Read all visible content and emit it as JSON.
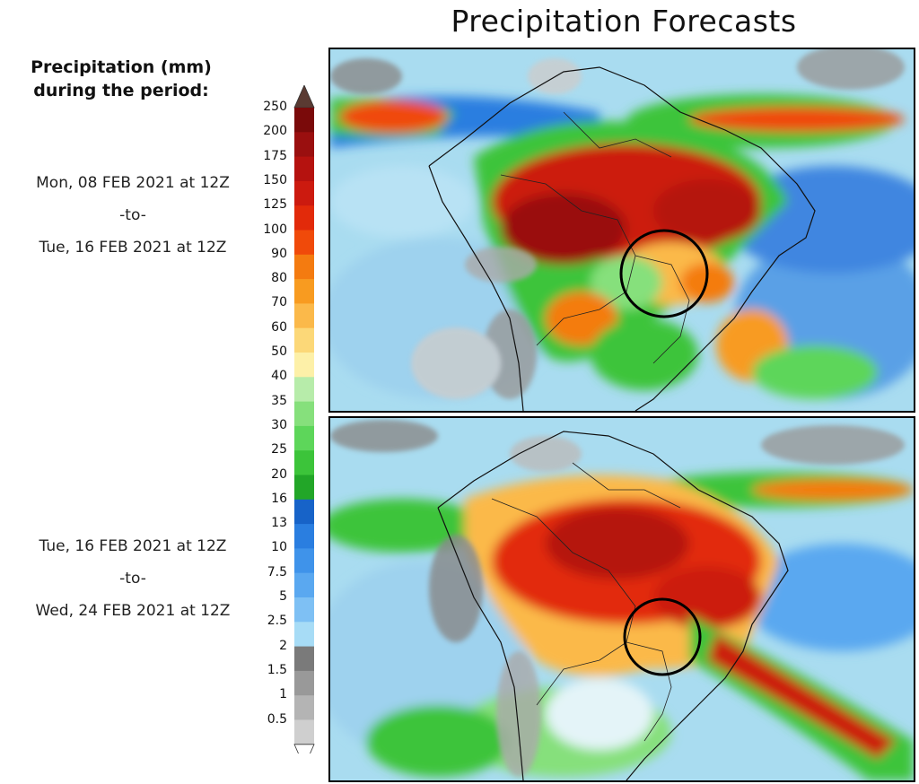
{
  "title": "Precipitation Forecasts",
  "legend": {
    "title_line1": "Precipitation (mm)",
    "title_line2": "during the period:"
  },
  "periods": [
    {
      "start": "Mon, 08 FEB 2021 at 12Z",
      "sep": "-to-",
      "end": "Tue, 16 FEB 2021 at 12Z"
    },
    {
      "start": "Tue, 16 FEB 2021 at 12Z",
      "sep": "-to-",
      "end": "Wed, 24 FEB 2021 at 12Z"
    }
  ],
  "scale": {
    "labels": [
      "250",
      "200",
      "175",
      "150",
      "125",
      "100",
      "90",
      "80",
      "70",
      "60",
      "50",
      "40",
      "35",
      "30",
      "25",
      "20",
      "16",
      "13",
      "10",
      "7.5",
      "5",
      "2.5",
      "2",
      "1.5",
      "1",
      "0.5"
    ],
    "colors": [
      "#7a0a0a",
      "#9a0f0f",
      "#b5120f",
      "#cc1a0f",
      "#e22a0a",
      "#f04a0a",
      "#f47b10",
      "#f89b20",
      "#fbb94a",
      "#fcd878",
      "#fdf0a8",
      "#b7ecaa",
      "#86e07c",
      "#5dd65a",
      "#3cc43a",
      "#22a628",
      "#1763c8",
      "#2a7ee0",
      "#3f93ea",
      "#5aa8f0",
      "#7ec0f4",
      "#a7dcf6",
      "#7a7a7a",
      "#999999",
      "#b4b4b4",
      "#cfcfcf"
    ],
    "top_cap": "#5a3a32",
    "bottom_cap": "#ffffff"
  }
}
